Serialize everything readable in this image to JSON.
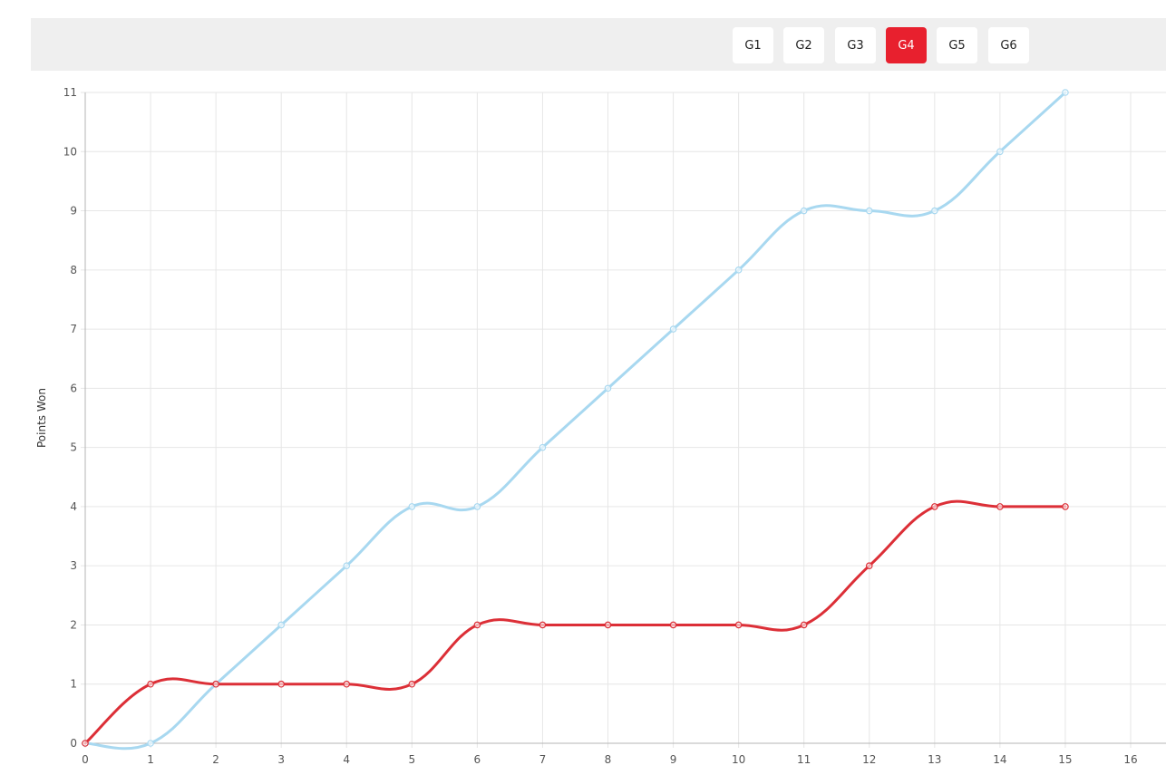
{
  "toolbar": {
    "tabs": [
      {
        "label": "G1",
        "active": false
      },
      {
        "label": "G2",
        "active": false
      },
      {
        "label": "G3",
        "active": false
      },
      {
        "label": "G4",
        "active": true
      },
      {
        "label": "G5",
        "active": false
      },
      {
        "label": "G6",
        "active": false
      }
    ]
  },
  "colors": {
    "accent": "#e8202e",
    "series_blue": "#a8d8f0",
    "series_red": "#dc2f37",
    "grid": "#e6e6e6",
    "toolbar_bg": "#efefef"
  },
  "chart_data": {
    "type": "line",
    "title": "",
    "xlabel": "",
    "ylabel": "Points Won",
    "xlim": [
      0,
      16
    ],
    "ylim": [
      0,
      11
    ],
    "x_ticks": [
      0,
      1,
      2,
      3,
      4,
      5,
      6,
      7,
      8,
      9,
      10,
      11,
      12,
      13,
      14,
      15,
      16
    ],
    "y_ticks": [
      0,
      1,
      2,
      3,
      4,
      5,
      6,
      7,
      8,
      9,
      10,
      11
    ],
    "grid": true,
    "legend": "none",
    "smooth": true,
    "x": [
      0,
      1,
      2,
      3,
      4,
      5,
      6,
      7,
      8,
      9,
      10,
      11,
      12,
      13,
      14,
      15
    ],
    "series": [
      {
        "color": "#a8d8f0",
        "values": [
          0,
          0,
          1,
          2,
          3,
          4,
          4,
          5,
          6,
          7,
          8,
          9,
          9,
          9,
          10,
          11
        ]
      },
      {
        "color": "#dc2f37",
        "values": [
          0,
          1,
          1,
          1,
          1,
          1,
          2,
          2,
          2,
          2,
          2,
          2,
          3,
          4,
          4,
          4
        ]
      }
    ]
  }
}
